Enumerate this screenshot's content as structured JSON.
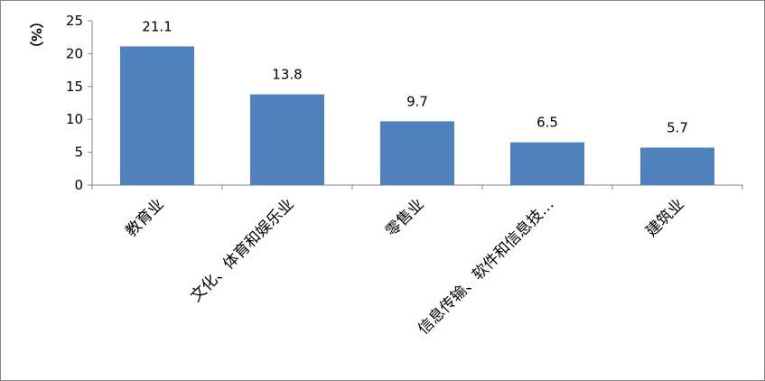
{
  "chart_data": {
    "type": "bar",
    "y_label": "（%）",
    "categories": [
      "教育业",
      "文化、体育和娱乐业",
      "零售业",
      "信息传输、软件和信息技…",
      "建筑业"
    ],
    "values": [
      21.1,
      13.8,
      9.7,
      6.5,
      5.7
    ],
    "color": "#4f81bd",
    "ylim": [
      0,
      25
    ],
    "yticks": [
      0,
      5,
      10,
      15,
      20,
      25
    ],
    "grid": false
  }
}
